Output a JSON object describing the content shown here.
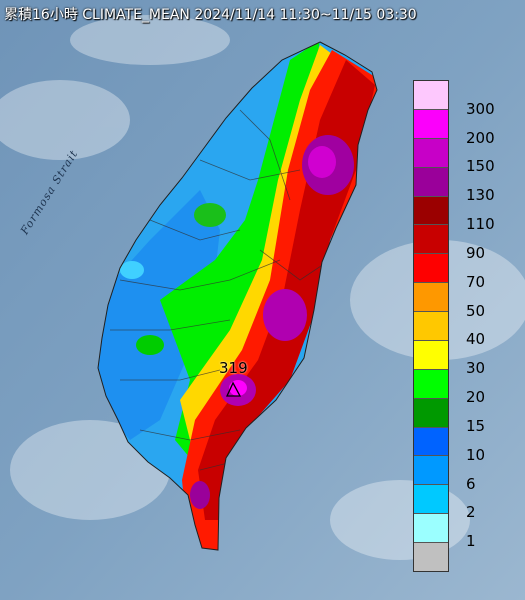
{
  "title": "累積16小時 CLIMATE_MEAN 2024/11/14 11:30~11/15 03:30",
  "strait_label": "Formosa Strait",
  "peak_label": "319",
  "legend": [
    {
      "label": "300",
      "color": "#fdc8fd"
    },
    {
      "label": "200",
      "color": "#fb00fb"
    },
    {
      "label": "150",
      "color": "#c700c7"
    },
    {
      "label": "130",
      "color": "#9a009a"
    },
    {
      "label": "110",
      "color": "#9b0000"
    },
    {
      "label": "90",
      "color": "#c80000"
    },
    {
      "label": "70",
      "color": "#fe0000"
    },
    {
      "label": "50",
      "color": "#fe9800"
    },
    {
      "label": "40",
      "color": "#ffc800"
    },
    {
      "label": "30",
      "color": "#ffff00"
    },
    {
      "label": "20",
      "color": "#00fe00"
    },
    {
      "label": "15",
      "color": "#009900"
    },
    {
      "label": "10",
      "color": "#0063ff"
    },
    {
      "label": "6",
      "color": "#0099ff"
    },
    {
      "label": "2",
      "color": "#00c9ff"
    },
    {
      "label": "1",
      "color": "#9bffff"
    },
    {
      "label": "",
      "color": "#c0c0c0"
    }
  ]
}
